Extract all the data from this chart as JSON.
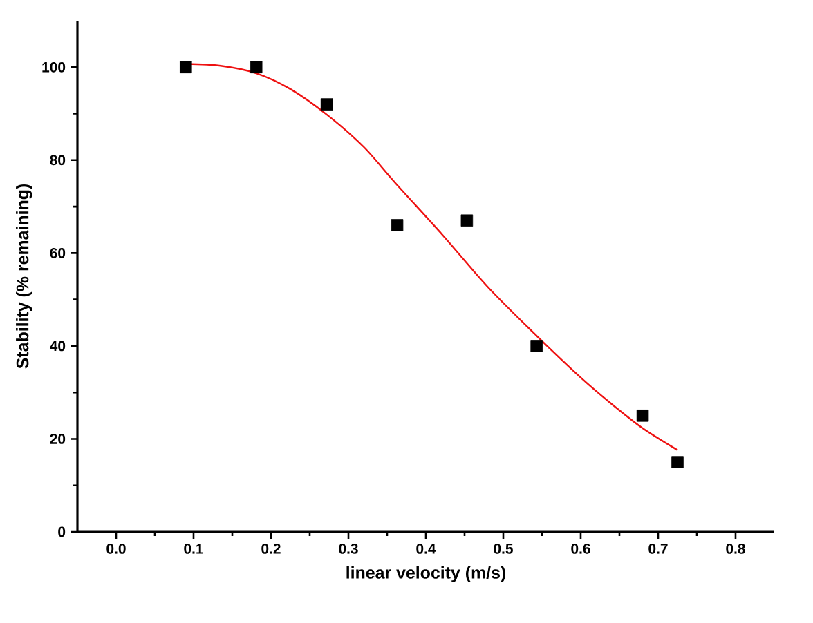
{
  "chart_data": {
    "type": "scatter",
    "xlabel": "linear velocity (m/s)",
    "ylabel": "Stability (% remaining)",
    "xlim": [
      -0.05,
      0.85
    ],
    "ylim": [
      0,
      110
    ],
    "xticks": [
      {
        "value": 0,
        "label": "0.0"
      },
      0.1,
      0.2,
      0.3,
      0.4,
      0.5,
      0.6,
      0.7,
      0.8
    ],
    "yticks": [
      0,
      20,
      40,
      60,
      80,
      100
    ],
    "grid": false,
    "series": [
      {
        "color": "#000000",
        "marker": "square",
        "x": [
          0.09,
          0.181,
          0.272,
          0.363,
          0.453,
          0.543,
          0.68,
          0.725
        ],
        "values": [
          100,
          100,
          92,
          66,
          67,
          40,
          25,
          15
        ]
      },
      {
        "type": "line",
        "color": "#ee1111",
        "marker": "none",
        "line_style": "solid",
        "x": [
          0.09,
          0.135,
          0.181,
          0.225,
          0.272,
          0.32,
          0.361,
          0.421,
          0.48,
          0.543,
          0.6,
          0.64,
          0.68,
          0.725
        ],
        "values": [
          100.7,
          100.3,
          98.7,
          95.3,
          89.8,
          82.8,
          75,
          64,
          52.7,
          42.2,
          33.2,
          27.5,
          22.3,
          17.6
        ]
      }
    ]
  }
}
